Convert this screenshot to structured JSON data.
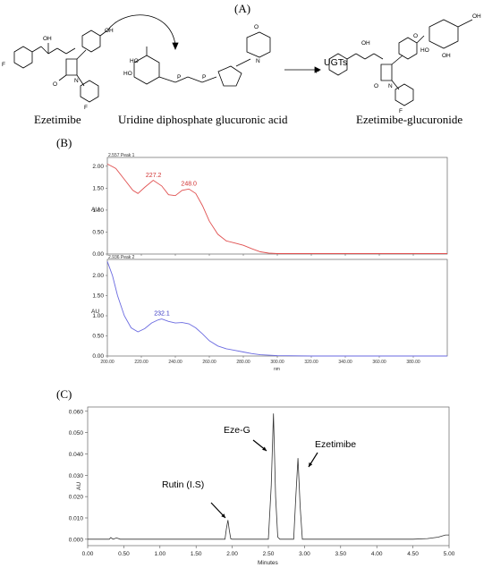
{
  "panels": {
    "a": {
      "label": "(A)"
    },
    "b": {
      "label": "(B)"
    },
    "c": {
      "label": "(C)"
    }
  },
  "scheme": {
    "molecule_1": "Ezetimibe",
    "molecule_2": "Uridine diphosphate glucuronic acid",
    "molecule_3": "Ezetimibe-glucuronide",
    "enzyme": "UGTs"
  },
  "spectra": {
    "xlabel": "nm",
    "ylabel": "AU",
    "x_ticks": [
      "200.00",
      "220.00",
      "240.00",
      "260.00",
      "280.00",
      "300.00",
      "320.00",
      "340.00",
      "360.00",
      "380.00"
    ],
    "y_ticks": [
      "0.00",
      "0.50",
      "1.00",
      "1.50",
      "2.00"
    ],
    "top": {
      "header": "2.557 Peak 1",
      "peaks": [
        "227.2",
        "248.0"
      ],
      "color": "#e05050"
    },
    "bottom": {
      "header": "2.936 Peak 2",
      "peaks": [
        "232.1"
      ],
      "color": "#6a6ae0"
    }
  },
  "chromatogram": {
    "xlabel": "Minutes",
    "ylabel": "AU",
    "x_ticks": [
      "0.00",
      "0.50",
      "1.00",
      "1.50",
      "2.00",
      "2.50",
      "3.00",
      "3.50",
      "4.00",
      "4.50",
      "5.00"
    ],
    "y_ticks": [
      "0.000",
      "0.010",
      "0.020",
      "0.030",
      "0.040",
      "0.050",
      "0.060"
    ],
    "annotations": [
      "Rutin (I.S)",
      "Eze-G",
      "Ezetimibe"
    ]
  },
  "chart_data": [
    {
      "type": "line",
      "header": "2.557 Peak 1",
      "xlabel": "nm",
      "ylabel": "AU",
      "xlim": [
        200,
        400
      ],
      "ylim": [
        0,
        2.2
      ],
      "series": [
        {
          "x": [
            200,
            205,
            210,
            215,
            218,
            222,
            227,
            232,
            236,
            240,
            244,
            248,
            252,
            256,
            260,
            265,
            270,
            275,
            280,
            285,
            290,
            295,
            300,
            320,
            340,
            360,
            380,
            400
          ],
          "y": [
            2.05,
            1.95,
            1.7,
            1.45,
            1.38,
            1.52,
            1.68,
            1.55,
            1.35,
            1.33,
            1.45,
            1.48,
            1.38,
            1.1,
            0.75,
            0.45,
            0.3,
            0.25,
            0.2,
            0.12,
            0.05,
            0.02,
            0.01,
            0.01,
            0.01,
            0.01,
            0.01,
            0.01
          ]
        }
      ],
      "peak_labels": [
        {
          "x": 227.2,
          "label": "227.2"
        },
        {
          "x": 248.0,
          "label": "248.0"
        }
      ]
    },
    {
      "type": "line",
      "header": "2.936 Peak 2",
      "xlabel": "nm",
      "ylabel": "AU",
      "xlim": [
        200,
        400
      ],
      "ylim": [
        0,
        2.4
      ],
      "series": [
        {
          "x": [
            200,
            203,
            206,
            210,
            214,
            218,
            222,
            226,
            230,
            232,
            236,
            240,
            244,
            248,
            252,
            256,
            260,
            265,
            270,
            275,
            280,
            285,
            290,
            300,
            320,
            340,
            360,
            380,
            400
          ],
          "y": [
            2.35,
            2.0,
            1.5,
            1.0,
            0.7,
            0.6,
            0.68,
            0.82,
            0.9,
            0.92,
            0.86,
            0.82,
            0.83,
            0.8,
            0.7,
            0.55,
            0.38,
            0.25,
            0.18,
            0.14,
            0.1,
            0.06,
            0.03,
            0.01,
            0.0,
            0.0,
            0.0,
            0.0,
            0.0
          ]
        }
      ],
      "peak_labels": [
        {
          "x": 232.1,
          "label": "232.1"
        }
      ]
    },
    {
      "type": "line",
      "xlabel": "Minutes",
      "ylabel": "AU",
      "xlim": [
        0,
        5
      ],
      "ylim": [
        -0.003,
        0.062
      ],
      "series": [
        {
          "x": [
            0.0,
            0.3,
            0.32,
            0.35,
            0.4,
            0.45,
            0.5,
            1.0,
            1.5,
            1.9,
            1.92,
            1.94,
            1.96,
            1.98,
            2.0,
            2.05,
            2.5,
            2.54,
            2.57,
            2.6,
            2.63,
            2.66,
            2.7,
            2.85,
            2.88,
            2.91,
            2.94,
            2.97,
            3.0,
            3.5,
            4.0,
            4.5,
            4.7,
            4.85,
            4.95,
            5.0
          ],
          "y": [
            0.0,
            0.0,
            0.0008,
            0.0,
            0.0006,
            0.0,
            0.0,
            0.0,
            0.0,
            0.0,
            0.005,
            0.009,
            0.004,
            0.0002,
            0.0,
            0.0,
            0.0,
            0.025,
            0.059,
            0.02,
            0.001,
            0.0,
            0.0,
            0.0,
            0.02,
            0.038,
            0.015,
            0.0,
            0.0,
            0.0,
            0.0,
            0.0,
            0.0003,
            0.001,
            0.002,
            0.002
          ]
        }
      ],
      "annotations": [
        {
          "label": "Rutin (I.S)",
          "x": 1.95
        },
        {
          "label": "Eze-G",
          "x": 2.57
        },
        {
          "label": "Ezetimibe",
          "x": 2.91
        }
      ]
    }
  ]
}
